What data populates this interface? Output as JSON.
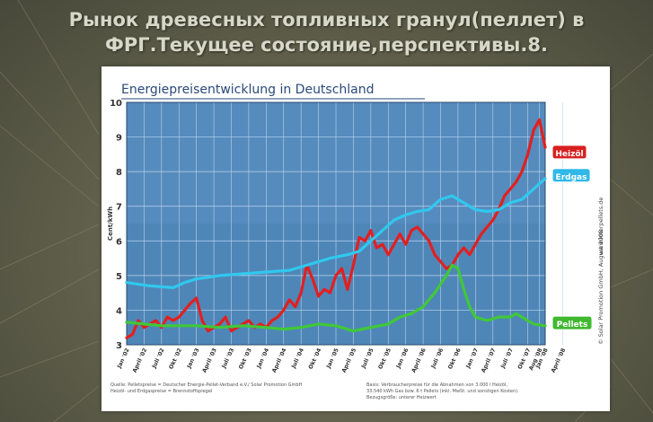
{
  "slide": {
    "title_line1": "Рынок древесных топливных гранул(пеллет) в",
    "title_line2": "ФРГ.Текущее состояние,перспективы.8."
  },
  "chart_data": {
    "type": "line",
    "title": "Energiepreisentwicklung in Deutschland",
    "ylabel": "Cent/kWh",
    "ylim": [
      3,
      10
    ],
    "yticks": [
      3,
      4,
      5,
      6,
      7,
      8,
      9,
      10
    ],
    "grid": true,
    "xticks": [
      "Jan '02",
      "April '02",
      "Juli '02",
      "Okt '02",
      "Jan '03",
      "April '03",
      "Juli '03",
      "Okt '03",
      "Jan '04",
      "April '04",
      "Juli '04",
      "Okt '04",
      "Jan '05",
      "April '05",
      "Juli '05",
      "Okt '05",
      "Jan '06",
      "April '06",
      "Juli '06",
      "Okt '06",
      "Jan '07",
      "April '07",
      "Juli '07",
      "Okt '07",
      "Jan '08",
      "April '08",
      "Aug '08"
    ],
    "series": [
      {
        "name": "Heizöl",
        "color": "#e02020",
        "label_bg": "#d82020",
        "points": [
          [
            0,
            3.2
          ],
          [
            1,
            3.3
          ],
          [
            2,
            3.7
          ],
          [
            3,
            3.5
          ],
          [
            4,
            3.6
          ],
          [
            5,
            3.7
          ],
          [
            6,
            3.5
          ],
          [
            7,
            3.8
          ],
          [
            8,
            3.7
          ],
          [
            9,
            3.8
          ],
          [
            10,
            4.0
          ],
          [
            11,
            4.2
          ],
          [
            12,
            4.35
          ],
          [
            13,
            3.7
          ],
          [
            14,
            3.4
          ],
          [
            15,
            3.5
          ],
          [
            16,
            3.6
          ],
          [
            17,
            3.8
          ],
          [
            18,
            3.4
          ],
          [
            19,
            3.5
          ],
          [
            20,
            3.6
          ],
          [
            21,
            3.7
          ],
          [
            22,
            3.5
          ],
          [
            23,
            3.6
          ],
          [
            24,
            3.5
          ],
          [
            25,
            3.7
          ],
          [
            26,
            3.8
          ],
          [
            27,
            4.0
          ],
          [
            28,
            4.3
          ],
          [
            29,
            4.1
          ],
          [
            30,
            4.5
          ],
          [
            31,
            5.3
          ],
          [
            32,
            4.9
          ],
          [
            33,
            4.4
          ],
          [
            34,
            4.6
          ],
          [
            35,
            4.5
          ],
          [
            36,
            5.0
          ],
          [
            37,
            5.2
          ],
          [
            38,
            4.6
          ],
          [
            39,
            5.3
          ],
          [
            40,
            6.1
          ],
          [
            41,
            6.0
          ],
          [
            42,
            6.3
          ],
          [
            43,
            5.8
          ],
          [
            44,
            5.9
          ],
          [
            45,
            5.6
          ],
          [
            46,
            5.9
          ],
          [
            47,
            6.2
          ],
          [
            48,
            5.9
          ],
          [
            49,
            6.3
          ],
          [
            50,
            6.4
          ],
          [
            51,
            6.2
          ],
          [
            52,
            6.0
          ],
          [
            53,
            5.6
          ],
          [
            54,
            5.4
          ],
          [
            55,
            5.2
          ],
          [
            56,
            5.3
          ],
          [
            57,
            5.6
          ],
          [
            58,
            5.8
          ],
          [
            59,
            5.6
          ],
          [
            60,
            5.9
          ],
          [
            61,
            6.2
          ],
          [
            62,
            6.4
          ],
          [
            63,
            6.6
          ],
          [
            64,
            6.9
          ],
          [
            65,
            7.3
          ],
          [
            66,
            7.5
          ],
          [
            67,
            7.7
          ],
          [
            68,
            8.0
          ],
          [
            69,
            8.5
          ],
          [
            70,
            9.2
          ],
          [
            71,
            9.5
          ],
          [
            72,
            8.7
          ]
        ]
      },
      {
        "name": "Erdgas",
        "color": "#30c8ee",
        "label_bg": "#30b8e8",
        "points": [
          [
            0,
            4.8
          ],
          [
            4,
            4.7
          ],
          [
            8,
            4.65
          ],
          [
            10,
            4.8
          ],
          [
            12,
            4.9
          ],
          [
            16,
            5.0
          ],
          [
            20,
            5.05
          ],
          [
            24,
            5.1
          ],
          [
            28,
            5.15
          ],
          [
            32,
            5.35
          ],
          [
            35,
            5.5
          ],
          [
            38,
            5.6
          ],
          [
            40,
            5.7
          ],
          [
            42,
            6.0
          ],
          [
            44,
            6.3
          ],
          [
            46,
            6.6
          ],
          [
            48,
            6.75
          ],
          [
            50,
            6.85
          ],
          [
            52,
            6.9
          ],
          [
            54,
            7.2
          ],
          [
            56,
            7.3
          ],
          [
            58,
            7.1
          ],
          [
            60,
            6.9
          ],
          [
            62,
            6.85
          ],
          [
            64,
            6.9
          ],
          [
            66,
            7.1
          ],
          [
            68,
            7.2
          ],
          [
            70,
            7.5
          ],
          [
            72,
            7.8
          ]
        ]
      },
      {
        "name": "Pellets",
        "color": "#40c838",
        "label_bg": "#40b830",
        "points": [
          [
            0,
            3.65
          ],
          [
            3,
            3.6
          ],
          [
            6,
            3.55
          ],
          [
            9,
            3.55
          ],
          [
            12,
            3.55
          ],
          [
            16,
            3.5
          ],
          [
            20,
            3.55
          ],
          [
            24,
            3.5
          ],
          [
            27,
            3.45
          ],
          [
            30,
            3.5
          ],
          [
            33,
            3.6
          ],
          [
            36,
            3.55
          ],
          [
            39,
            3.4
          ],
          [
            42,
            3.5
          ],
          [
            45,
            3.6
          ],
          [
            47,
            3.8
          ],
          [
            49,
            3.9
          ],
          [
            51,
            4.1
          ],
          [
            53,
            4.5
          ],
          [
            55,
            5.0
          ],
          [
            56,
            5.3
          ],
          [
            57,
            5.2
          ],
          [
            58,
            4.6
          ],
          [
            59,
            4.1
          ],
          [
            60,
            3.8
          ],
          [
            61,
            3.75
          ],
          [
            62,
            3.7
          ],
          [
            64,
            3.8
          ],
          [
            66,
            3.8
          ],
          [
            67,
            3.9
          ],
          [
            68,
            3.8
          ],
          [
            70,
            3.6
          ],
          [
            72,
            3.55
          ]
        ]
      }
    ]
  },
  "footer": {
    "source_line1": "Quelle: Pelletspreise = Deutscher Energie-Pellet-Verband e.V./ Solar Promotion GmbH",
    "source_line2": "Heizöl- und Erdgaspreise = Brennstoffspiegel",
    "basis_line1": "Basis:   Verbraucherpreise für die Abnahmen von 3.000 l Heizöl,",
    "basis_line2": "33.540 kWh Gas bzw. 6 t Pellets (inkl. MwSt. und sonstigen Kosten).",
    "basis_line3": "Bezugsgröße: unterer Heizwert",
    "copyright": "© Solar Promotion GmbH, August 2008",
    "website": "www.interpellets.de"
  }
}
